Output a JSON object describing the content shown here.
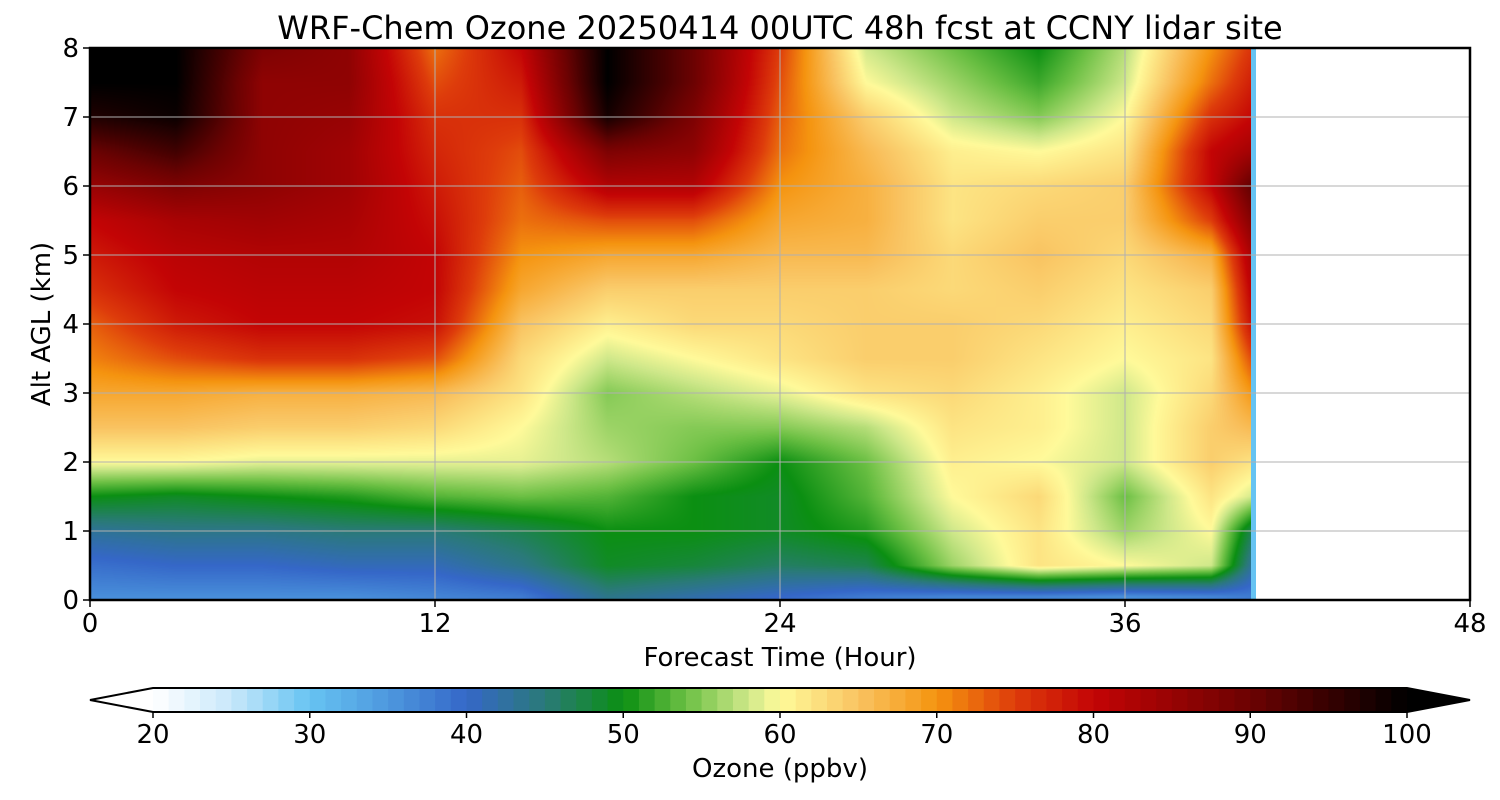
{
  "chart_data": {
    "type": "heatmap",
    "title": "WRF-Chem Ozone  20250414 00UTC 48h fcst at CCNY lidar site",
    "xlabel": "Forecast Time (Hour)",
    "ylabel": "Alt AGL (km)",
    "xlim": [
      0,
      48
    ],
    "ylim": [
      0,
      8
    ],
    "xticks": [
      0,
      12,
      24,
      36,
      48
    ],
    "yticks": [
      0,
      1,
      2,
      3,
      4,
      5,
      6,
      7,
      8
    ],
    "grid": true,
    "data_end_hour": 40.5,
    "x": [
      0,
      3,
      6,
      9,
      12,
      15,
      18,
      21,
      24,
      27,
      30,
      33,
      36,
      39,
      40.5
    ],
    "y": [
      0.05,
      0.5,
      1.0,
      1.5,
      2.0,
      2.5,
      3.0,
      3.5,
      4.0,
      4.5,
      5.0,
      5.5,
      6.0,
      6.5,
      7.0,
      7.5,
      8.0
    ],
    "z": [
      [
        36,
        36,
        36,
        36,
        37,
        38,
        44,
        42,
        40,
        38,
        37,
        37,
        36,
        37,
        38
      ],
      [
        39,
        40,
        40,
        41,
        41,
        44,
        49,
        48,
        46,
        47,
        56,
        62,
        60,
        58,
        42
      ],
      [
        43,
        44,
        44,
        45,
        45,
        47,
        50,
        50,
        49,
        51,
        58,
        62,
        56,
        60,
        46
      ],
      [
        50,
        49,
        50,
        51,
        53,
        54,
        53,
        50,
        49,
        53,
        60,
        63,
        54,
        62,
        58
      ],
      [
        60,
        60,
        59,
        59,
        59,
        59,
        57,
        54,
        50,
        54,
        61,
        60,
        58,
        64,
        62
      ],
      [
        65,
        65,
        64,
        64,
        63,
        60,
        56,
        55,
        55,
        57,
        62,
        61,
        58,
        64,
        66
      ],
      [
        68,
        68,
        67,
        67,
        66,
        62,
        55,
        57,
        59,
        62,
        63,
        61,
        58,
        63,
        70
      ],
      [
        71,
        74,
        76,
        76,
        74,
        63,
        58,
        60,
        62,
        64,
        64,
        62,
        60,
        62,
        75
      ],
      [
        73,
        78,
        80,
        80,
        79,
        65,
        61,
        63,
        63,
        64,
        64,
        63,
        61,
        63,
        80
      ],
      [
        76,
        80,
        81,
        81,
        80,
        68,
        64,
        64,
        64,
        64,
        63,
        64,
        62,
        64,
        82
      ],
      [
        78,
        81,
        82,
        82,
        80,
        70,
        68,
        68,
        66,
        66,
        63,
        65,
        63,
        67,
        84
      ],
      [
        80,
        83,
        84,
        83,
        79,
        72,
        74,
        74,
        68,
        67,
        62,
        64,
        64,
        75,
        88
      ],
      [
        85,
        88,
        86,
        84,
        78,
        73,
        82,
        82,
        70,
        67,
        62,
        63,
        64,
        80,
        92
      ],
      [
        90,
        94,
        86,
        84,
        77,
        74,
        88,
        86,
        72,
        66,
        61,
        60,
        62,
        80,
        84
      ],
      [
        97,
        99,
        86,
        85,
        76,
        76,
        98,
        88,
        73,
        64,
        58,
        55,
        60,
        76,
        80
      ],
      [
        100,
        100,
        86,
        86,
        74,
        78,
        100,
        90,
        74,
        60,
        56,
        52,
        58,
        72,
        78
      ],
      [
        100,
        100,
        88,
        86,
        72,
        80,
        100,
        90,
        75,
        58,
        54,
        50,
        57,
        70,
        76
      ]
    ],
    "colorbar": {
      "label": "Ozone  (ppbv)",
      "min": 20,
      "max": 100,
      "extend": "both",
      "ticks": [
        20,
        30,
        40,
        50,
        60,
        70,
        80,
        90,
        100
      ],
      "stops": [
        {
          "v": 20,
          "color": "#ffffff"
        },
        {
          "v": 25,
          "color": "#c8e8fa"
        },
        {
          "v": 30,
          "color": "#66c3f2"
        },
        {
          "v": 35,
          "color": "#4d98de"
        },
        {
          "v": 40,
          "color": "#3567c8"
        },
        {
          "v": 45,
          "color": "#2a7a78"
        },
        {
          "v": 50,
          "color": "#0b8f12"
        },
        {
          "v": 54,
          "color": "#6cc044"
        },
        {
          "v": 58,
          "color": "#cfe88a"
        },
        {
          "v": 60,
          "color": "#fffa9a"
        },
        {
          "v": 65,
          "color": "#f9c361"
        },
        {
          "v": 70,
          "color": "#f5940f"
        },
        {
          "v": 75,
          "color": "#de3c0b"
        },
        {
          "v": 80,
          "color": "#c30405"
        },
        {
          "v": 90,
          "color": "#6c0202"
        },
        {
          "v": 100,
          "color": "#000000"
        }
      ]
    }
  }
}
